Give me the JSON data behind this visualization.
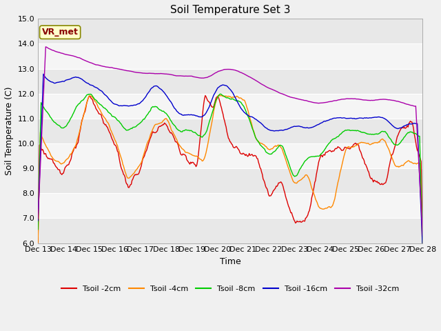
{
  "title": "Soil Temperature Set 3",
  "xlabel": "Time",
  "ylabel": "Soil Temperature (C)",
  "ylim": [
    6.0,
    15.0
  ],
  "yticks": [
    6.0,
    7.0,
    8.0,
    9.0,
    10.0,
    11.0,
    12.0,
    13.0,
    14.0,
    15.0
  ],
  "xtick_labels": [
    "Dec 13",
    "Dec 14",
    "Dec 15",
    "Dec 16",
    "Dec 17",
    "Dec 18",
    "Dec 19",
    "Dec 20",
    "Dec 21",
    "Dec 22",
    "Dec 23",
    "Dec 24",
    "Dec 25",
    "Dec 26",
    "Dec 27",
    "Dec 28"
  ],
  "legend_label": "VR_met",
  "series_labels": [
    "Tsoil -2cm",
    "Tsoil -4cm",
    "Tsoil -8cm",
    "Tsoil -16cm",
    "Tsoil -32cm"
  ],
  "series_colors": [
    "#dd0000",
    "#ff8800",
    "#00cc00",
    "#0000cc",
    "#aa00aa"
  ],
  "band_colors": [
    "#e8e8e8",
    "#f5f5f5"
  ],
  "fig_bg": "#f0f0f0",
  "plot_bg": "#f0f0f0",
  "title_fontsize": 11,
  "axis_label_fontsize": 9,
  "tick_fontsize": 8,
  "legend_fontsize": 8,
  "vr_box_facecolor": "#ffffcc",
  "vr_box_edgecolor": "#888800",
  "vr_text_color": "#880000"
}
